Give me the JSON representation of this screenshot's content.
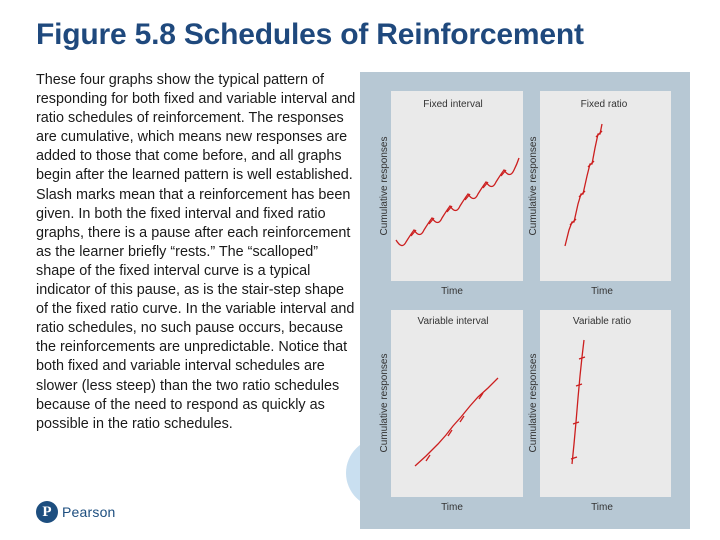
{
  "slide": {
    "title": "Figure 5.8 Schedules of Reinforcement",
    "body": "These four graphs show the typical pattern of responding for both fixed and variable interval and ratio schedules of reinforcement. The responses are cumulative, which means new responses are added to those that come before, and all graphs begin after the learned pattern is well established. Slash marks mean that a reinforcement has been given. In both the fixed interval and fixed ratio graphs, there is a pause after each reinforcement as the learner briefly “rests.” The “scalloped” shape of the fixed interval curve is a typical indicator of this pause, as is the stair-step shape of the fixed ratio curve. In the variable interval and ratio schedules, no such pause occurs, because the reinforcements are unpredictable. Notice that both fixed and variable interval schedules are slower (less steep) than the two ratio schedules because of the need to respond as quickly as possible in the ratio schedules."
  },
  "logo": {
    "letter": "P",
    "text": "Pearson"
  },
  "colors": {
    "title": "#1f497d",
    "figure_bg": "#b7c8d4",
    "panel_bg": "#eaeaea",
    "curve": "#cc1f1f"
  },
  "figure": {
    "panels": [
      {
        "title": "Fixed interval",
        "ylabel": "Cumulative responses",
        "xlabel": "Time"
      },
      {
        "title": "Fixed ratio",
        "ylabel": "Cumulative responses",
        "xlabel": "Time"
      },
      {
        "title": "Variable interval",
        "ylabel": "Cumulative responses",
        "xlabel": "Time"
      },
      {
        "title": "Variable ratio",
        "ylabel": "Cumulative responses",
        "xlabel": "Time"
      }
    ]
  }
}
